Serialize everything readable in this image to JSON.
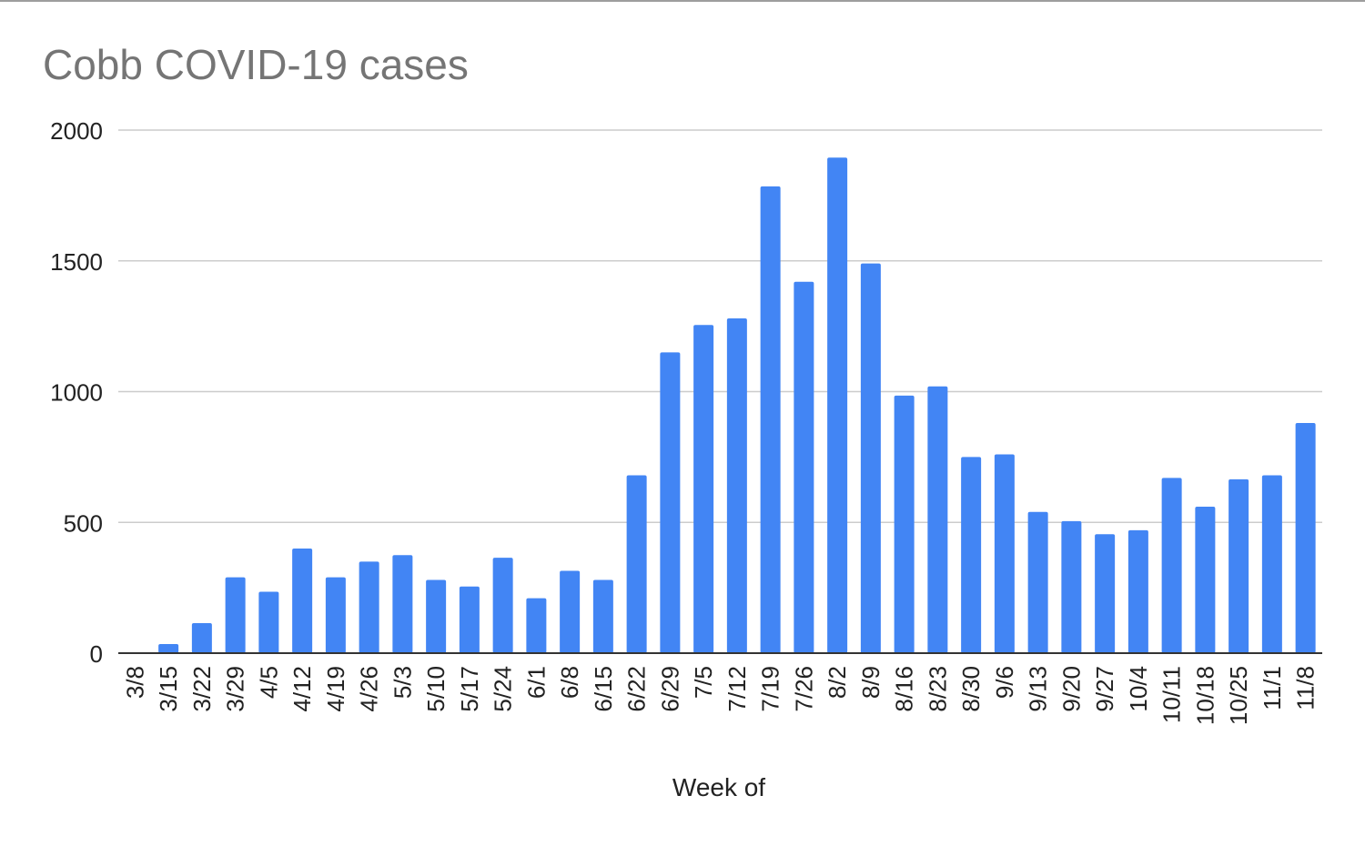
{
  "chart_data": {
    "type": "bar",
    "title": "Cobb COVID-19 cases",
    "xlabel": "Week of",
    "ylabel": "",
    "ylim": [
      0,
      2000
    ],
    "yticks": [
      0,
      500,
      1000,
      1500,
      2000
    ],
    "grid": true,
    "bar_color": "#4285f4",
    "categories": [
      "3/8",
      "3/15",
      "3/22",
      "3/29",
      "4/5",
      "4/12",
      "4/19",
      "4/26",
      "5/3",
      "5/10",
      "5/17",
      "5/24",
      "6/1",
      "6/8",
      "6/15",
      "6/22",
      "6/29",
      "7/5",
      "7/12",
      "7/19",
      "7/26",
      "8/2",
      "8/9",
      "8/16",
      "8/23",
      "8/30",
      "9/6",
      "9/13",
      "9/20",
      "9/27",
      "10/4",
      "10/11",
      "10/18",
      "10/25",
      "11/1",
      "11/8"
    ],
    "values": [
      0,
      35,
      115,
      290,
      235,
      400,
      290,
      350,
      375,
      280,
      255,
      365,
      210,
      315,
      280,
      680,
      1150,
      1255,
      1280,
      1785,
      1420,
      1895,
      1490,
      985,
      1020,
      750,
      760,
      540,
      505,
      455,
      470,
      670,
      560,
      665,
      680,
      880
    ]
  }
}
